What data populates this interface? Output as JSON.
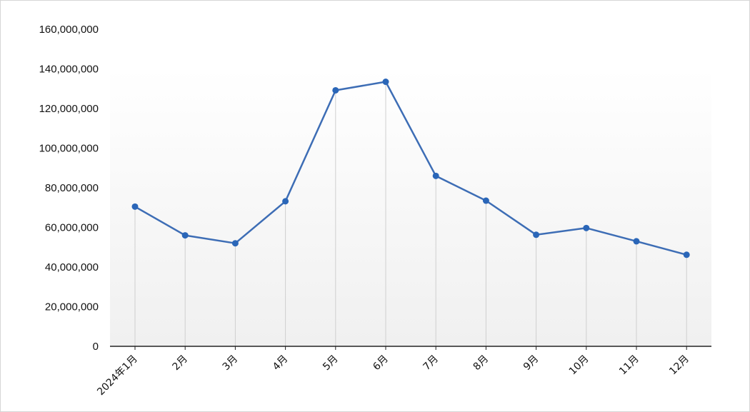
{
  "chart_data": {
    "type": "line",
    "title": "",
    "xlabel": "",
    "ylabel": "",
    "categories": [
      "2024年1月",
      "2月",
      "3月",
      "4月",
      "5月",
      "6月",
      "7月",
      "8月",
      "9月",
      "10月",
      "11月",
      "12月"
    ],
    "y_ticks": [
      "0",
      "20,000,000",
      "40,000,000",
      "60,000,000",
      "80,000,000",
      "100,000,000",
      "120,000,000",
      "140,000,000",
      "160,000,000"
    ],
    "ylim": [
      0,
      160000000
    ],
    "series": [
      {
        "values": [
          70500000,
          56000000,
          52000000,
          73200000,
          129200000,
          133500000,
          86000000,
          73500000,
          56300000,
          59700000,
          53000000,
          46200000
        ]
      }
    ],
    "grid": false,
    "drop_lines": true,
    "line_color": "#3d6db5",
    "marker_color": "#2a66b8",
    "legend": "none"
  }
}
